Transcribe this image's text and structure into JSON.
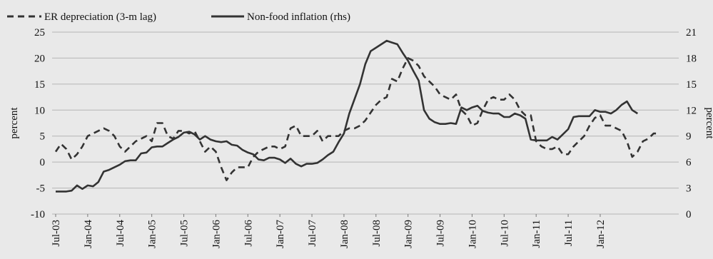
{
  "chart_data": {
    "type": "line",
    "title": "",
    "legend": {
      "placement": "top-left",
      "entries": [
        "ER depreciation (3-m lag)",
        "Non-food inflation (rhs)"
      ]
    },
    "ylabel_left": "percent",
    "ylabel_right": "percent",
    "ylim_left": [
      -10,
      25
    ],
    "ylim_right": [
      0,
      21
    ],
    "yticks_left": [
      "-10",
      "-5",
      "0",
      "5",
      "10",
      "15",
      "20",
      "25"
    ],
    "yticks_right": [
      "0",
      "3",
      "6",
      "9",
      "12",
      "15",
      "18",
      "21"
    ],
    "grid": "horizontal",
    "colors": {
      "line": "#333333",
      "grid": "#b5b5b5",
      "background": "#e9e9e9"
    },
    "x_tick_labels": [
      "Jul-03",
      "Jan-04",
      "Jul-04",
      "Jan-05",
      "Jul-05",
      "Jan-06",
      "Jul-06",
      "Jan-07",
      "Jul-07",
      "Jan-08",
      "Jul-08",
      "Jan-09",
      "Jul-09",
      "Jan-10",
      "Jul-10",
      "Jan-11",
      "Jul-11",
      "Jan-12"
    ],
    "x_start": "Jul-03",
    "series": [
      {
        "name": "ER depreciation (3-m lag)",
        "axis": "left",
        "style": "dashed",
        "values": [
          2.0,
          3.5,
          2.5,
          0.5,
          1.5,
          3.0,
          5.0,
          5.5,
          6.0,
          6.5,
          6.0,
          5.0,
          3.0,
          2.0,
          3.0,
          4.0,
          4.5,
          5.0,
          4.0,
          7.5,
          7.5,
          5.0,
          4.5,
          6.0,
          6.0,
          5.5,
          6.0,
          4.0,
          2.0,
          3.0,
          2.0,
          -1.0,
          -3.5,
          -2.0,
          -1.0,
          -1.0,
          -1.0,
          1.0,
          2.0,
          2.5,
          3.0,
          3.0,
          2.5,
          3.0,
          6.5,
          7.0,
          5.0,
          5.0,
          5.0,
          6.0,
          4.0,
          5.0,
          5.0,
          5.0,
          6.0,
          6.5,
          6.5,
          7.0,
          8.0,
          9.5,
          11.0,
          12.0,
          12.5,
          16.0,
          15.5,
          18.0,
          20.0,
          19.5,
          18.5,
          16.5,
          15.5,
          14.5,
          13.0,
          12.5,
          12.0,
          13.0,
          10.0,
          9.0,
          7.0,
          7.5,
          10.0,
          12.0,
          12.5,
          12.0,
          12.0,
          13.0,
          12.0,
          10.0,
          9.0,
          9.0,
          4.0,
          3.0,
          2.5,
          2.5,
          3.0,
          1.5,
          1.5,
          3.0,
          4.0,
          5.0,
          7.0,
          8.5,
          9.0,
          7.0,
          7.0,
          6.5,
          6.0,
          4.0,
          1.0,
          2.0,
          4.0,
          4.5,
          5.5,
          5.5
        ]
      },
      {
        "name": "Non-food inflation (rhs)",
        "axis": "right",
        "style": "solid",
        "values": [
          2.6,
          2.6,
          2.6,
          2.7,
          3.3,
          2.9,
          3.3,
          3.2,
          3.7,
          4.9,
          5.1,
          5.4,
          5.7,
          6.1,
          6.2,
          6.2,
          7.0,
          7.1,
          7.7,
          7.8,
          7.8,
          8.2,
          8.6,
          8.9,
          9.4,
          9.5,
          9.2,
          8.6,
          9.0,
          8.6,
          8.4,
          8.3,
          8.4,
          8.0,
          7.9,
          7.4,
          7.1,
          6.9,
          6.3,
          6.2,
          6.5,
          6.5,
          6.3,
          5.9,
          6.4,
          5.8,
          5.5,
          5.8,
          5.8,
          5.9,
          6.3,
          6.8,
          7.2,
          8.3,
          9.3,
          11.6,
          13.3,
          15.0,
          17.3,
          18.8,
          19.2,
          19.6,
          20.0,
          19.8,
          19.6,
          18.6,
          17.7,
          16.5,
          15.4,
          12.0,
          11.0,
          10.6,
          10.4,
          10.4,
          10.5,
          10.4,
          12.3,
          12.0,
          12.3,
          12.5,
          11.9,
          11.7,
          11.6,
          11.6,
          11.2,
          11.2,
          11.6,
          11.4,
          11.0,
          8.6,
          8.5,
          8.5,
          8.5,
          8.9,
          8.6,
          9.2,
          9.8,
          11.2,
          11.3,
          11.3,
          11.3,
          12.0,
          11.8,
          11.8,
          11.6,
          12.0,
          12.6,
          13.0,
          12.0,
          11.6
        ]
      }
    ]
  }
}
